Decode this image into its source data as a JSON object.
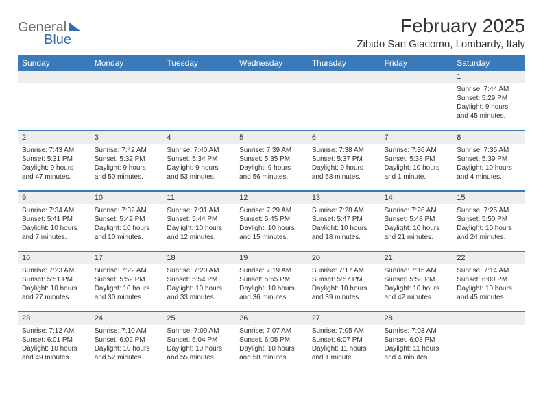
{
  "logo": {
    "text1": "General",
    "text2": "Blue",
    "color_gray": "#6a6a6a",
    "color_blue": "#2f6fb0"
  },
  "title": "February 2025",
  "location": "Zibido San Giacomo, Lombardy, Italy",
  "colors": {
    "header_bg": "#3a7ab8",
    "header_fg": "#ffffff",
    "daynum_bg": "#eeeeee",
    "rule": "#3a7ab8",
    "text": "#333333"
  },
  "day_headers": [
    "Sunday",
    "Monday",
    "Tuesday",
    "Wednesday",
    "Thursday",
    "Friday",
    "Saturday"
  ],
  "weeks": [
    [
      {
        "n": "",
        "sr": "",
        "ss": "",
        "dl": ""
      },
      {
        "n": "",
        "sr": "",
        "ss": "",
        "dl": ""
      },
      {
        "n": "",
        "sr": "",
        "ss": "",
        "dl": ""
      },
      {
        "n": "",
        "sr": "",
        "ss": "",
        "dl": ""
      },
      {
        "n": "",
        "sr": "",
        "ss": "",
        "dl": ""
      },
      {
        "n": "",
        "sr": "",
        "ss": "",
        "dl": ""
      },
      {
        "n": "1",
        "sr": "Sunrise: 7:44 AM",
        "ss": "Sunset: 5:29 PM",
        "dl": "Daylight: 9 hours and 45 minutes."
      }
    ],
    [
      {
        "n": "2",
        "sr": "Sunrise: 7:43 AM",
        "ss": "Sunset: 5:31 PM",
        "dl": "Daylight: 9 hours and 47 minutes."
      },
      {
        "n": "3",
        "sr": "Sunrise: 7:42 AM",
        "ss": "Sunset: 5:32 PM",
        "dl": "Daylight: 9 hours and 50 minutes."
      },
      {
        "n": "4",
        "sr": "Sunrise: 7:40 AM",
        "ss": "Sunset: 5:34 PM",
        "dl": "Daylight: 9 hours and 53 minutes."
      },
      {
        "n": "5",
        "sr": "Sunrise: 7:39 AM",
        "ss": "Sunset: 5:35 PM",
        "dl": "Daylight: 9 hours and 56 minutes."
      },
      {
        "n": "6",
        "sr": "Sunrise: 7:38 AM",
        "ss": "Sunset: 5:37 PM",
        "dl": "Daylight: 9 hours and 58 minutes."
      },
      {
        "n": "7",
        "sr": "Sunrise: 7:36 AM",
        "ss": "Sunset: 5:38 PM",
        "dl": "Daylight: 10 hours and 1 minute."
      },
      {
        "n": "8",
        "sr": "Sunrise: 7:35 AM",
        "ss": "Sunset: 5:39 PM",
        "dl": "Daylight: 10 hours and 4 minutes."
      }
    ],
    [
      {
        "n": "9",
        "sr": "Sunrise: 7:34 AM",
        "ss": "Sunset: 5:41 PM",
        "dl": "Daylight: 10 hours and 7 minutes."
      },
      {
        "n": "10",
        "sr": "Sunrise: 7:32 AM",
        "ss": "Sunset: 5:42 PM",
        "dl": "Daylight: 10 hours and 10 minutes."
      },
      {
        "n": "11",
        "sr": "Sunrise: 7:31 AM",
        "ss": "Sunset: 5:44 PM",
        "dl": "Daylight: 10 hours and 12 minutes."
      },
      {
        "n": "12",
        "sr": "Sunrise: 7:29 AM",
        "ss": "Sunset: 5:45 PM",
        "dl": "Daylight: 10 hours and 15 minutes."
      },
      {
        "n": "13",
        "sr": "Sunrise: 7:28 AM",
        "ss": "Sunset: 5:47 PM",
        "dl": "Daylight: 10 hours and 18 minutes."
      },
      {
        "n": "14",
        "sr": "Sunrise: 7:26 AM",
        "ss": "Sunset: 5:48 PM",
        "dl": "Daylight: 10 hours and 21 minutes."
      },
      {
        "n": "15",
        "sr": "Sunrise: 7:25 AM",
        "ss": "Sunset: 5:50 PM",
        "dl": "Daylight: 10 hours and 24 minutes."
      }
    ],
    [
      {
        "n": "16",
        "sr": "Sunrise: 7:23 AM",
        "ss": "Sunset: 5:51 PM",
        "dl": "Daylight: 10 hours and 27 minutes."
      },
      {
        "n": "17",
        "sr": "Sunrise: 7:22 AM",
        "ss": "Sunset: 5:52 PM",
        "dl": "Daylight: 10 hours and 30 minutes."
      },
      {
        "n": "18",
        "sr": "Sunrise: 7:20 AM",
        "ss": "Sunset: 5:54 PM",
        "dl": "Daylight: 10 hours and 33 minutes."
      },
      {
        "n": "19",
        "sr": "Sunrise: 7:19 AM",
        "ss": "Sunset: 5:55 PM",
        "dl": "Daylight: 10 hours and 36 minutes."
      },
      {
        "n": "20",
        "sr": "Sunrise: 7:17 AM",
        "ss": "Sunset: 5:57 PM",
        "dl": "Daylight: 10 hours and 39 minutes."
      },
      {
        "n": "21",
        "sr": "Sunrise: 7:15 AM",
        "ss": "Sunset: 5:58 PM",
        "dl": "Daylight: 10 hours and 42 minutes."
      },
      {
        "n": "22",
        "sr": "Sunrise: 7:14 AM",
        "ss": "Sunset: 6:00 PM",
        "dl": "Daylight: 10 hours and 45 minutes."
      }
    ],
    [
      {
        "n": "23",
        "sr": "Sunrise: 7:12 AM",
        "ss": "Sunset: 6:01 PM",
        "dl": "Daylight: 10 hours and 49 minutes."
      },
      {
        "n": "24",
        "sr": "Sunrise: 7:10 AM",
        "ss": "Sunset: 6:02 PM",
        "dl": "Daylight: 10 hours and 52 minutes."
      },
      {
        "n": "25",
        "sr": "Sunrise: 7:09 AM",
        "ss": "Sunset: 6:04 PM",
        "dl": "Daylight: 10 hours and 55 minutes."
      },
      {
        "n": "26",
        "sr": "Sunrise: 7:07 AM",
        "ss": "Sunset: 6:05 PM",
        "dl": "Daylight: 10 hours and 58 minutes."
      },
      {
        "n": "27",
        "sr": "Sunrise: 7:05 AM",
        "ss": "Sunset: 6:07 PM",
        "dl": "Daylight: 11 hours and 1 minute."
      },
      {
        "n": "28",
        "sr": "Sunrise: 7:03 AM",
        "ss": "Sunset: 6:08 PM",
        "dl": "Daylight: 11 hours and 4 minutes."
      },
      {
        "n": "",
        "sr": "",
        "ss": "",
        "dl": ""
      }
    ]
  ]
}
